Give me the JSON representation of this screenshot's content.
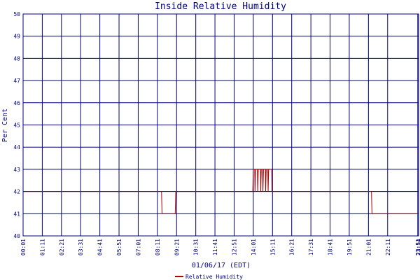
{
  "chart_data": {
    "type": "line",
    "title": "Inside Relative Humidity",
    "xlabel": "01/06/17 (EDT)",
    "ylabel": "Per Cent",
    "ylim": [
      40,
      50
    ],
    "yticks": [
      40,
      41,
      42,
      43,
      44,
      45,
      46,
      47,
      48,
      49,
      50
    ],
    "xlim": [
      0,
      1443
    ],
    "xticks": [
      {
        "t": 0,
        "label": "00:01"
      },
      {
        "t": 70,
        "label": "01:11"
      },
      {
        "t": 140,
        "label": "02:21"
      },
      {
        "t": 210,
        "label": "03:31"
      },
      {
        "t": 280,
        "label": "04:41"
      },
      {
        "t": 350,
        "label": "05:51"
      },
      {
        "t": 420,
        "label": "07:01"
      },
      {
        "t": 490,
        "label": "08:11"
      },
      {
        "t": 560,
        "label": "09:21"
      },
      {
        "t": 630,
        "label": "10:31"
      },
      {
        "t": 700,
        "label": "11:41"
      },
      {
        "t": 770,
        "label": "12:51"
      },
      {
        "t": 840,
        "label": "14:01"
      },
      {
        "t": 910,
        "label": "15:11"
      },
      {
        "t": 980,
        "label": "16:21"
      },
      {
        "t": 1050,
        "label": "17:31"
      },
      {
        "t": 1120,
        "label": "18:41"
      },
      {
        "t": 1190,
        "label": "19:51"
      },
      {
        "t": 1260,
        "label": "21:01"
      },
      {
        "t": 1330,
        "label": "22:11"
      },
      {
        "t": 1440,
        "label": "23:51"
      },
      {
        "t": 1443,
        "label": "23:54"
      }
    ],
    "grid": true,
    "legend_position": "bottom-center",
    "colors": {
      "series": "#aa0000",
      "grid": "#000080",
      "frame": "#000080",
      "text": "#000080"
    },
    "series": [
      {
        "name": "Relative Humidity",
        "points": [
          [
            0,
            42
          ],
          [
            505,
            42
          ],
          [
            507,
            41
          ],
          [
            555,
            41
          ],
          [
            557,
            42
          ],
          [
            838,
            42
          ],
          [
            840,
            43
          ],
          [
            845,
            43
          ],
          [
            846,
            42
          ],
          [
            848,
            43
          ],
          [
            855,
            43
          ],
          [
            856,
            42
          ],
          [
            858,
            43
          ],
          [
            866,
            43
          ],
          [
            867,
            42
          ],
          [
            869,
            43
          ],
          [
            874,
            43
          ],
          [
            875,
            42
          ],
          [
            877,
            43
          ],
          [
            884,
            43
          ],
          [
            885,
            42
          ],
          [
            887,
            43
          ],
          [
            893,
            43
          ],
          [
            894,
            42
          ],
          [
            896,
            43
          ],
          [
            907,
            43
          ],
          [
            908,
            42
          ],
          [
            1271,
            42
          ],
          [
            1273,
            41
          ],
          [
            1443,
            41
          ]
        ]
      }
    ]
  }
}
